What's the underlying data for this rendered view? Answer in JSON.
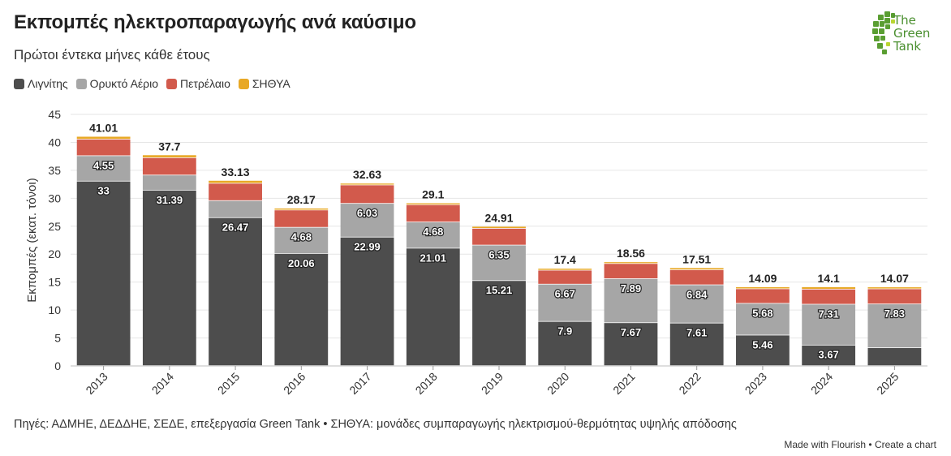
{
  "title": "Εκπομπές ηλεκτροπαραγωγής ανά καύσιμο",
  "subtitle": "Πρώτοι έντεκα μήνες κάθε έτους",
  "logo": {
    "line1": "The",
    "line2": "Green",
    "line3": "Tank",
    "color": "#5a9e32"
  },
  "footer": "Πηγές: ΑΔΜΗΕ, ΔΕΔΔΗΕ, ΣΕΔΕ, επεξεργασία Green Tank • ΣΗΘΥΑ: μονάδες συμπαραγωγής ηλεκτρισμού-θερμότητας υψηλής απόδοσης",
  "credit": "Made with Flourish • Create a chart",
  "chart_data": {
    "type": "bar",
    "stacked": true,
    "categories": [
      "2013",
      "2014",
      "2015",
      "2016",
      "2017",
      "2018",
      "2019",
      "2020",
      "2021",
      "2022",
      "2023",
      "2024",
      "2025"
    ],
    "ylabel": "Εκπομπές (εκατ. τόνοι)",
    "xlabel": "",
    "ylim": [
      0,
      45
    ],
    "yticks": [
      0,
      5,
      10,
      15,
      20,
      25,
      30,
      35,
      40,
      45
    ],
    "grid": true,
    "legend_position": "top-left",
    "series": [
      {
        "name": "Λιγνίτης",
        "color": "#4d4d4d",
        "values": [
          33,
          31.39,
          26.47,
          20.06,
          22.99,
          21.01,
          15.21,
          7.9,
          7.67,
          7.61,
          5.46,
          3.67,
          3.2
        ],
        "labels": [
          "33",
          "31.39",
          "26.47",
          "20.06",
          "22.99",
          "21.01",
          "15.21",
          "7.9",
          "7.67",
          "7.61",
          "5.46",
          "3.67",
          ""
        ]
      },
      {
        "name": "Ορυκτό Αέριο",
        "color": "#a6a6a6",
        "values": [
          4.55,
          2.7,
          3.05,
          4.68,
          6.03,
          4.68,
          6.35,
          6.67,
          7.89,
          6.84,
          5.68,
          7.31,
          7.83
        ],
        "labels": [
          "4.55",
          "",
          "",
          "4.68",
          "6.03",
          "4.68",
          "6.35",
          "6.67",
          "7.89",
          "6.84",
          "5.68",
          "7.31",
          "7.83"
        ]
      },
      {
        "name": "Πετρέλαιο",
        "color": "#d25a4c",
        "values": [
          2.96,
          3.11,
          3.1,
          3.1,
          3.3,
          3.1,
          3.0,
          2.5,
          2.7,
          2.7,
          2.6,
          2.7,
          2.7
        ],
        "labels": [
          "",
          "",
          "",
          "",
          "",
          "",
          "",
          "",
          "",
          "",
          "",
          "",
          ""
        ]
      },
      {
        "name": "ΣΗΘΥΑ",
        "color": "#e8a825",
        "values": [
          0.5,
          0.5,
          0.51,
          0.33,
          0.31,
          0.31,
          0.35,
          0.33,
          0.3,
          0.36,
          0.35,
          0.42,
          0.34
        ],
        "labels": [
          "",
          "",
          "",
          "",
          "",
          "",
          "",
          "",
          "",
          "",
          "",
          "",
          ""
        ]
      }
    ],
    "totals": [
      41.01,
      37.7,
      33.13,
      28.17,
      32.63,
      29.1,
      24.91,
      17.4,
      18.56,
      17.51,
      14.09,
      14.1,
      14.07
    ]
  }
}
